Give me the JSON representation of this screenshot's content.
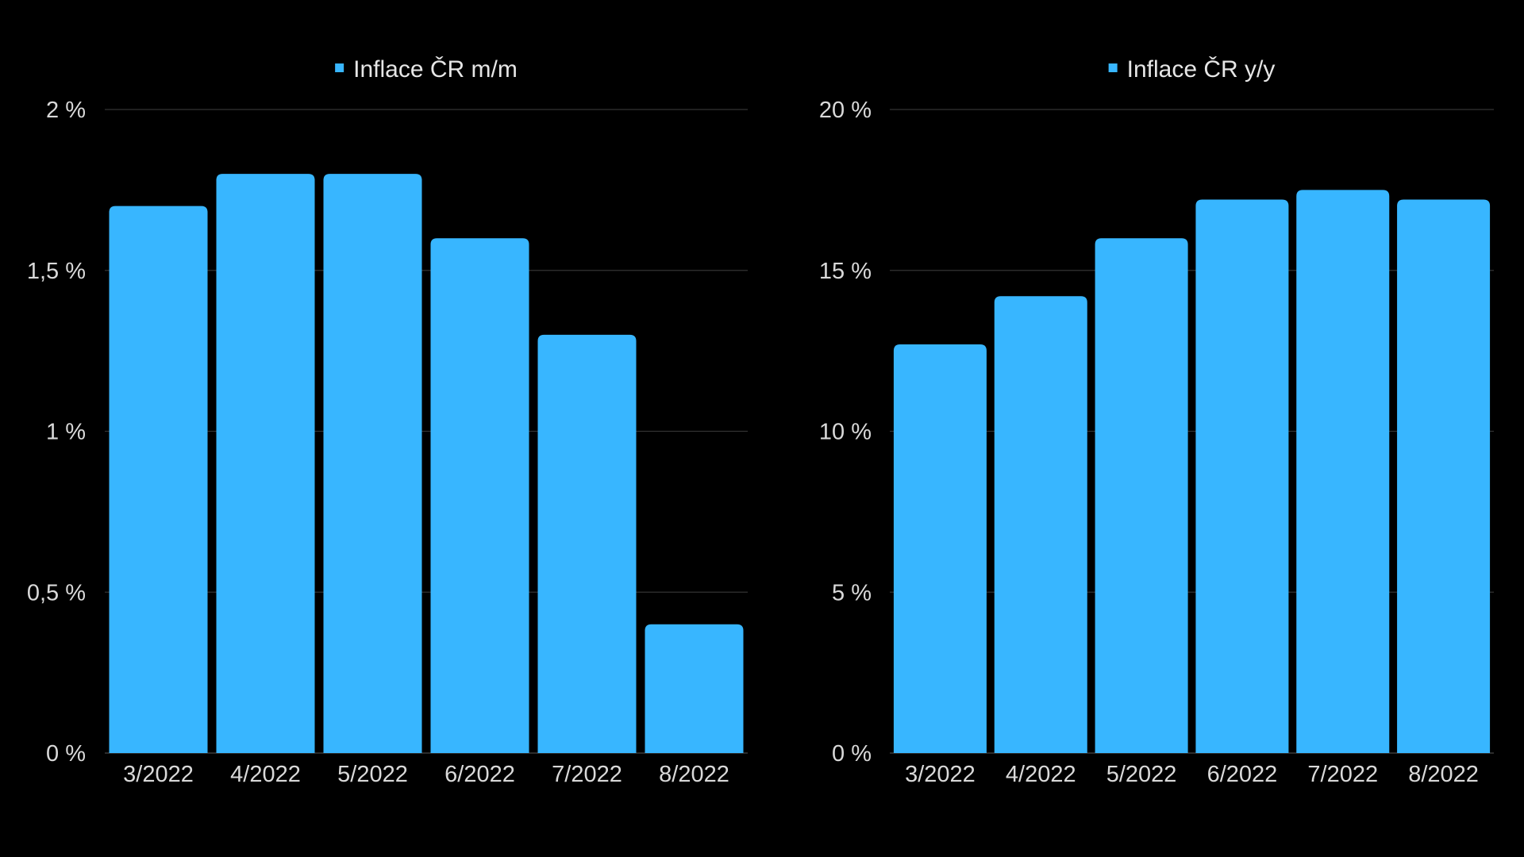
{
  "colors": {
    "background": "#000000",
    "bar": "#38b6ff",
    "text": "#d9d9d9",
    "grid": "#333333"
  },
  "chart_data": [
    {
      "type": "bar",
      "series": [
        {
          "name": "Inflace ČR m/m",
          "values": [
            1.7,
            1.8,
            1.8,
            1.6,
            1.3,
            0.4
          ]
        }
      ],
      "categories": [
        "3/2022",
        "4/2022",
        "5/2022",
        "6/2022",
        "7/2022",
        "8/2022"
      ],
      "ylim": [
        0,
        2
      ],
      "yticks": [
        0,
        0.5,
        1,
        1.5,
        2
      ],
      "ytick_labels": [
        "0 %",
        "0,5 %",
        "1 %",
        "1,5 %",
        "2 %"
      ],
      "legend_position": "top-center",
      "grid": true
    },
    {
      "type": "bar",
      "series": [
        {
          "name": "Inflace ČR y/y",
          "values": [
            12.7,
            14.2,
            16.0,
            17.2,
            17.5,
            17.2
          ]
        }
      ],
      "categories": [
        "3/2022",
        "4/2022",
        "5/2022",
        "6/2022",
        "7/2022",
        "8/2022"
      ],
      "ylim": [
        0,
        20
      ],
      "yticks": [
        0,
        5,
        10,
        15,
        20
      ],
      "ytick_labels": [
        "0 %",
        "5 %",
        "10 %",
        "15 %",
        "20 %"
      ],
      "legend_position": "top-center",
      "grid": true
    }
  ]
}
